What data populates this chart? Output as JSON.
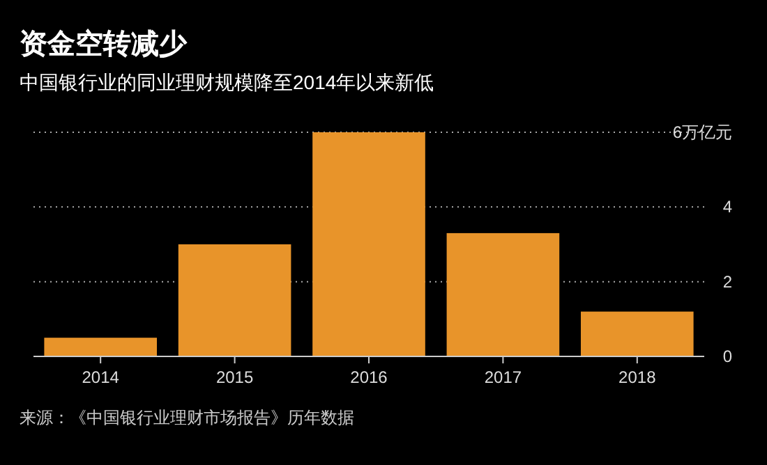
{
  "chart_data": {
    "type": "bar",
    "title": "资金空转减少",
    "subtitle": "中国银行业的同业理财规模降至2014年以来新低",
    "categories": [
      "2014",
      "2015",
      "2016",
      "2017",
      "2018"
    ],
    "series": [
      {
        "color": "#e8942a",
        "values": [
          0.5,
          3.0,
          6.0,
          3.3,
          1.2
        ]
      }
    ],
    "ylim": [
      0,
      6
    ],
    "yticks": [
      0,
      2,
      4,
      {
        "value": 6,
        "label": "6万亿元"
      }
    ],
    "grid": "y",
    "annotations": [
      "来源：《中国银行业理财市场报告》历年数据"
    ]
  }
}
